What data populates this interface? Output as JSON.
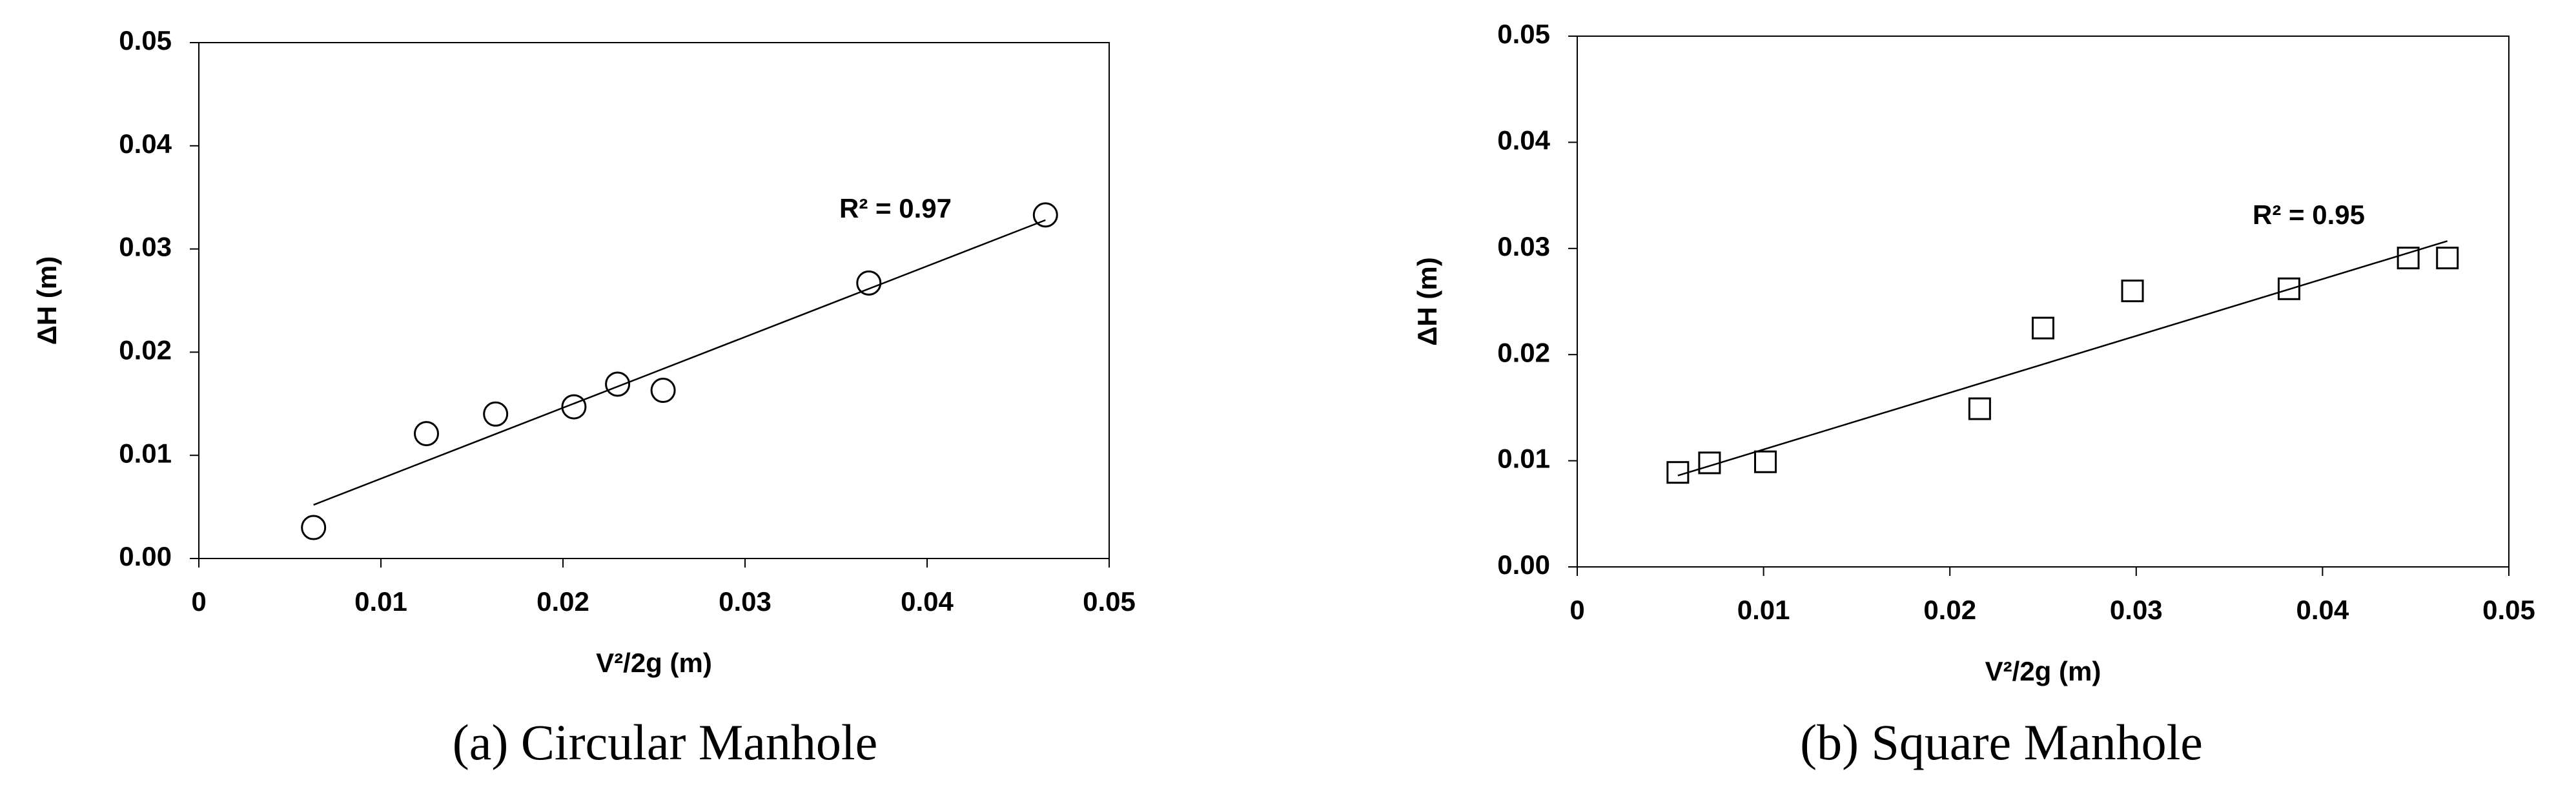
{
  "chart_data": [
    {
      "type": "scatter",
      "caption": "(a) Circular Manhole",
      "xlabel": "V²/2g (m)",
      "ylabel": "ΔH (m)",
      "marker": "circle",
      "color": "#000000",
      "x": [
        0.0063,
        0.0125,
        0.0163,
        0.0206,
        0.023,
        0.0255,
        0.0368,
        0.0465
      ],
      "values": [
        0.003,
        0.0121,
        0.014,
        0.0147,
        0.0169,
        0.0163,
        0.0267,
        0.0333
      ],
      "trendline": {
        "x": [
          0.0063,
          0.0465
        ],
        "values": [
          0.0052,
          0.0328
        ]
      },
      "annotation": "R² = 0.97",
      "xlim": [
        0,
        0.05
      ],
      "xticks": [
        0,
        0.01,
        0.02,
        0.03,
        0.04,
        0.05
      ],
      "ylim": [
        0,
        0.05
      ],
      "yticks": [
        {
          "value": 0,
          "label": "0.00"
        },
        0.01,
        0.02,
        0.03,
        0.04,
        0.05
      ]
    },
    {
      "type": "scatter",
      "caption": "(b) Square Manhole",
      "xlabel": "V²/2g (m)",
      "ylabel": "ΔH (m)",
      "marker": "square",
      "color": "#000000",
      "x": [
        0.0054,
        0.0071,
        0.0101,
        0.0216,
        0.025,
        0.0298,
        0.0382,
        0.0446,
        0.0467
      ],
      "values": [
        0.0089,
        0.0098,
        0.0099,
        0.0149,
        0.0225,
        0.026,
        0.0262,
        0.0291,
        0.0291
      ],
      "trendline": {
        "x": [
          0.0054,
          0.0467
        ],
        "values": [
          0.0086,
          0.0307
        ]
      },
      "annotation": "R² = 0.95",
      "xlim": [
        0,
        0.05
      ],
      "xticks": [
        0,
        0.01,
        0.02,
        0.03,
        0.04,
        0.05
      ],
      "ylim": [
        0,
        0.05
      ],
      "yticks": [
        {
          "value": 0,
          "label": "0.00"
        },
        0.01,
        0.02,
        0.03,
        0.04,
        0.05
      ]
    }
  ]
}
